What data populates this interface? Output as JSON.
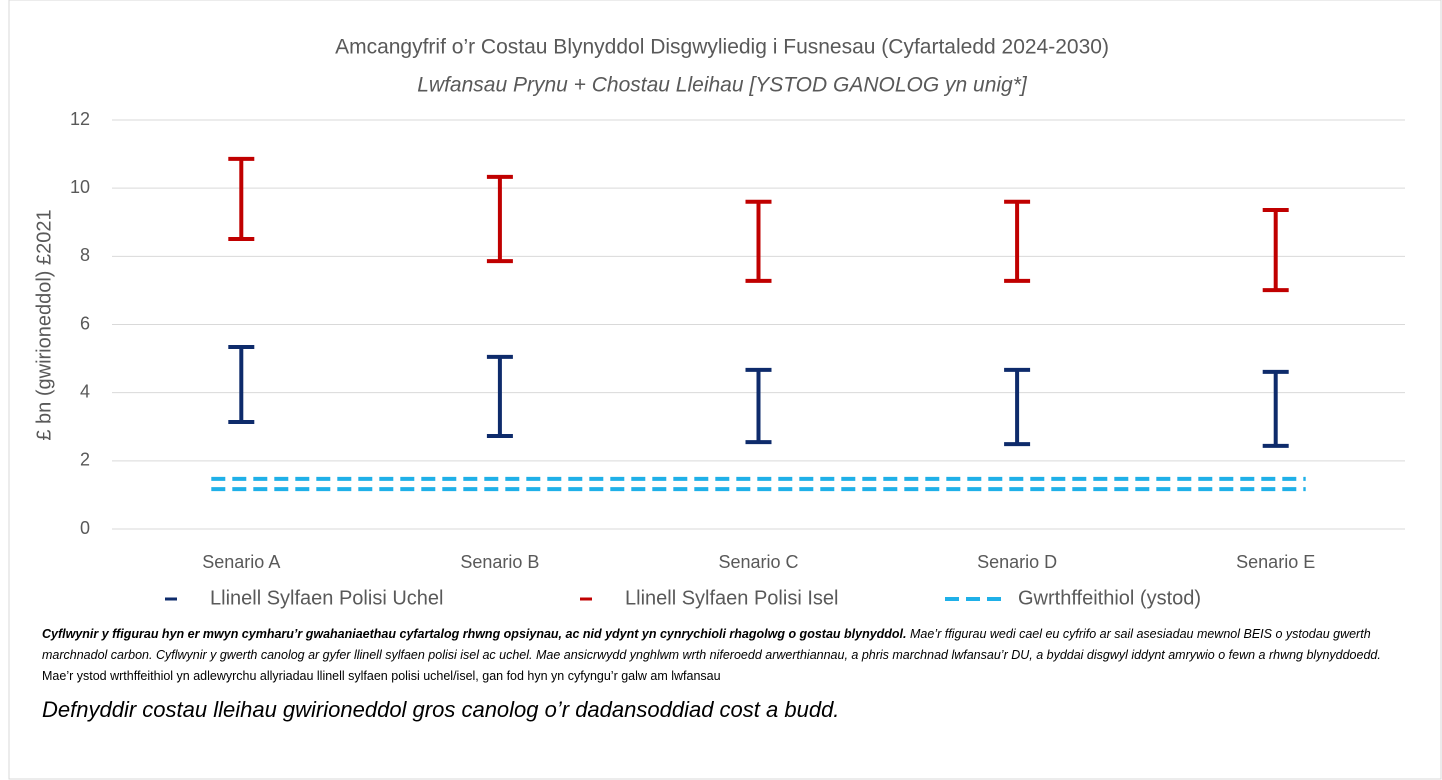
{
  "chart_data": {
    "type": "range",
    "title": "Amcangyfrif o’r Costau Blynyddol Disgwyliedig i Fusnesau (Cyfartaledd 2024-2030)",
    "subtitle": "Lwfansau Prynu + Chostau Lleihau [YSTOD GANOLOG yn unig*]",
    "ylabel": "£ bn (gwirioneddol) £2021",
    "categories": [
      "Senario A",
      "Senario B",
      "Senario C",
      "Senario D",
      "Senario E"
    ],
    "series": [
      {
        "name": "Llinell Sylfaen Polisi Uchel",
        "color": "#0e2b6b",
        "low": [
          3.14,
          2.73,
          2.55,
          2.49,
          2.44
        ],
        "high": [
          5.34,
          5.05,
          4.67,
          4.67,
          4.61
        ]
      },
      {
        "name": "Llinell Sylfaen Polisi Isel",
        "color": "#c00000",
        "low": [
          8.51,
          7.86,
          7.28,
          7.28,
          7.01
        ],
        "high": [
          10.86,
          10.33,
          9.6,
          9.6,
          9.36
        ]
      },
      {
        "name": "Gwrthffeithiol (ystod)",
        "color": "#1fb0e8",
        "range": [
          1.17,
          1.47
        ]
      }
    ],
    "ylim": [
      0,
      12
    ],
    "yticks": [
      0,
      2,
      4,
      6,
      8,
      10,
      12
    ],
    "grid": true,
    "legend": "bottom"
  },
  "notes": {
    "bold": "Cyflwynir y ffigurau hyn er mwyn cymharu’r gwahaniaethau cyfartalog rhwng opsiynau, ac nid ydynt yn cynrychioli rhagolwg o gostau blynyddol.",
    "italic": "Mae’r ffigurau wedi cael eu cyfrifo ar sail asesiadau mewnol BEIS o ystodau gwerth marchnadol carbon. Cyflwynir y gwerth canolog ar gyfer llinell sylfaen polisi isel ac uchel. Mae ansicrwydd ynghlwm wrth niferoedd arwerthiannau, a phris marchnad lwfansau’r DU, a byddai disgwyl iddynt amrywio o fewn a rhwng blynyddoedd.",
    "plain": "Mae’r ystod wrthffeithiol yn adlewyrchu allyriadau llinell sylfaen polisi uchel/isel, gan fod hyn yn cyfyngu’r galw am lwfansau",
    "large": "Defnyddir costau lleihau gwirioneddol gros canolog o’r dadansoddiad cost a budd."
  }
}
